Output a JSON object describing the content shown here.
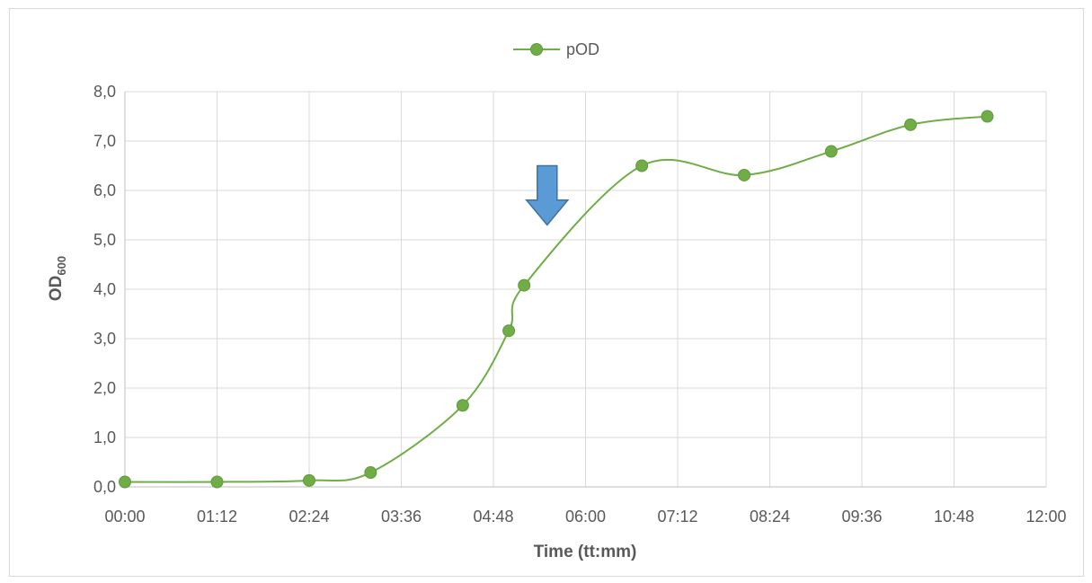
{
  "chart_data": {
    "type": "line",
    "title": "",
    "xlabel": "Time (tt:mm)",
    "ylabel_main": "OD",
    "ylabel_sub": "600",
    "legend_position": "top-center",
    "grid": true,
    "smooth": true,
    "xlim_minutes": [
      0,
      720
    ],
    "x_ticks": [
      "00:00",
      "01:12",
      "02:24",
      "03:36",
      "04:48",
      "06:00",
      "07:12",
      "08:24",
      "09:36",
      "10:48",
      "12:00"
    ],
    "ylim": [
      0,
      8
    ],
    "y_ticks": [
      "0,0",
      "1,0",
      "2,0",
      "3,0",
      "4,0",
      "5,0",
      "6,0",
      "7,0",
      "8,0"
    ],
    "series": [
      {
        "name": "pOD",
        "color": "#70ad47",
        "marker_color": "#70ad47",
        "x": [
          "00:00",
          "01:12",
          "02:24",
          "03:12",
          "04:24",
          "05:00",
          "05:12",
          "06:44",
          "08:04",
          "09:12",
          "10:14",
          "11:14"
        ],
        "y": [
          0.1,
          0.1,
          0.13,
          0.29,
          1.65,
          3.16,
          4.08,
          6.5,
          6.31,
          6.79,
          7.33,
          7.5
        ]
      }
    ],
    "annotations": [
      {
        "type": "arrow-down",
        "x": "05:30",
        "y_top": 6.5,
        "y_bottom": 5.3,
        "color": "#5b9bd5"
      }
    ]
  }
}
